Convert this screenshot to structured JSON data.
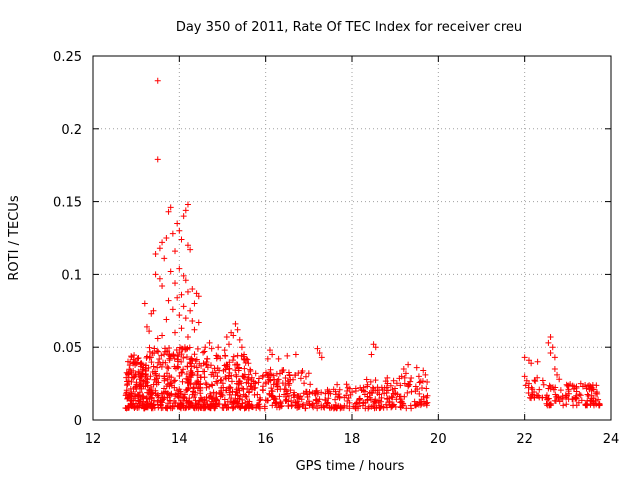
{
  "chart_data": {
    "type": "scatter",
    "title": "Day 350 of 2011, Rate Of TEC Index for receiver creu",
    "xlabel": "GPS time / hours",
    "ylabel": "ROTI / TECUs",
    "xlim": [
      12,
      24
    ],
    "ylim": [
      0,
      0.25
    ],
    "xticks": [
      12,
      14,
      16,
      18,
      20,
      22,
      24
    ],
    "xtick_labels": [
      "12",
      "14",
      "16",
      "18",
      "20",
      "22",
      "24"
    ],
    "yticks": [
      0,
      0.05,
      0.1,
      0.15,
      0.2,
      0.25
    ],
    "ytick_labels": [
      "0",
      "0.05",
      "0.1",
      "0.15",
      "0.2",
      "0.25"
    ],
    "grid": true,
    "marker": "plus",
    "color": "#ff0000",
    "series": [
      {
        "name": "ROTI",
        "points": [
          [
            13.5,
            0.233
          ],
          [
            13.5,
            0.179
          ],
          [
            13.8,
            0.146
          ],
          [
            13.75,
            0.143
          ],
          [
            14.2,
            0.148
          ],
          [
            14.15,
            0.144
          ],
          [
            14.1,
            0.14
          ],
          [
            13.95,
            0.135
          ],
          [
            14.0,
            0.13
          ],
          [
            13.85,
            0.128
          ],
          [
            13.7,
            0.125
          ],
          [
            13.6,
            0.122
          ],
          [
            13.55,
            0.118
          ],
          [
            14.05,
            0.124
          ],
          [
            14.2,
            0.12
          ],
          [
            13.9,
            0.116
          ],
          [
            13.45,
            0.114
          ],
          [
            13.65,
            0.111
          ],
          [
            14.25,
            0.117
          ],
          [
            14.0,
            0.104
          ],
          [
            13.8,
            0.102
          ],
          [
            14.1,
            0.099
          ],
          [
            13.45,
            0.1
          ],
          [
            13.55,
            0.097
          ],
          [
            14.15,
            0.096
          ],
          [
            13.9,
            0.094
          ],
          [
            13.6,
            0.092
          ],
          [
            14.3,
            0.09
          ],
          [
            14.2,
            0.088
          ],
          [
            14.05,
            0.086
          ],
          [
            13.95,
            0.084
          ],
          [
            14.4,
            0.087
          ],
          [
            14.45,
            0.085
          ],
          [
            13.75,
            0.082
          ],
          [
            14.35,
            0.08
          ],
          [
            14.1,
            0.078
          ],
          [
            13.85,
            0.076
          ],
          [
            14.25,
            0.075
          ],
          [
            13.4,
            0.075
          ],
          [
            13.35,
            0.073
          ],
          [
            13.2,
            0.08
          ],
          [
            14.0,
            0.072
          ],
          [
            14.15,
            0.07
          ],
          [
            13.7,
            0.069
          ],
          [
            14.3,
            0.068
          ],
          [
            14.45,
            0.067
          ],
          [
            13.25,
            0.064
          ],
          [
            13.3,
            0.061
          ],
          [
            14.05,
            0.063
          ],
          [
            13.9,
            0.06
          ],
          [
            13.6,
            0.058
          ],
          [
            14.35,
            0.062
          ],
          [
            14.2,
            0.057
          ],
          [
            13.5,
            0.056
          ],
          [
            15.3,
            0.066
          ],
          [
            15.35,
            0.062
          ],
          [
            15.2,
            0.06
          ],
          [
            15.25,
            0.058
          ],
          [
            15.4,
            0.055
          ],
          [
            15.1,
            0.057
          ],
          [
            15.15,
            0.052
          ],
          [
            14.9,
            0.05
          ],
          [
            15.45,
            0.05
          ],
          [
            15.05,
            0.048
          ],
          [
            14.7,
            0.053
          ],
          [
            14.75,
            0.049
          ],
          [
            14.6,
            0.05
          ],
          [
            15.5,
            0.045
          ],
          [
            15.55,
            0.042
          ],
          [
            15.6,
            0.039
          ],
          [
            18.5,
            0.052
          ],
          [
            18.55,
            0.05
          ],
          [
            18.45,
            0.045
          ],
          [
            17.2,
            0.049
          ],
          [
            17.25,
            0.046
          ],
          [
            17.3,
            0.043
          ],
          [
            16.1,
            0.048
          ],
          [
            16.15,
            0.045
          ],
          [
            16.05,
            0.042
          ],
          [
            16.7,
            0.045
          ],
          [
            16.5,
            0.044
          ],
          [
            16.3,
            0.042
          ],
          [
            19.2,
            0.035
          ],
          [
            19.25,
            0.032
          ],
          [
            19.3,
            0.038
          ],
          [
            19.5,
            0.036
          ],
          [
            19.55,
            0.03
          ],
          [
            19.65,
            0.034
          ],
          [
            19.7,
            0.031
          ],
          [
            19.15,
            0.03
          ],
          [
            22.6,
            0.057
          ],
          [
            22.55,
            0.053
          ],
          [
            22.65,
            0.05
          ],
          [
            22.6,
            0.046
          ],
          [
            22.7,
            0.043
          ],
          [
            22.0,
            0.043
          ],
          [
            22.1,
            0.041
          ],
          [
            22.15,
            0.039
          ],
          [
            22.3,
            0.04
          ],
          [
            22.0,
            0.03
          ],
          [
            22.05,
            0.027
          ],
          [
            22.1,
            0.025
          ],
          [
            22.7,
            0.035
          ],
          [
            22.75,
            0.031
          ],
          [
            22.8,
            0.028
          ],
          [
            23.2,
            0.022
          ],
          [
            23.3,
            0.025
          ],
          [
            23.35,
            0.023
          ],
          [
            23.4,
            0.024
          ],
          [
            23.5,
            0.021
          ],
          [
            23.55,
            0.02
          ],
          [
            23.65,
            0.018
          ],
          [
            23.6,
            0.015
          ],
          [
            23.7,
            0.014
          ]
        ],
        "clusters": [
          {
            "x": [
              12.75,
              13.3
            ],
            "y": [
              0.008,
              0.045
            ],
            "count": 170
          },
          {
            "x": [
              13.3,
              14.6
            ],
            "y": [
              0.008,
              0.05
            ],
            "count": 320
          },
          {
            "x": [
              14.6,
              15.6
            ],
            "y": [
              0.008,
              0.045
            ],
            "count": 200
          },
          {
            "x": [
              15.6,
              17.0
            ],
            "y": [
              0.008,
              0.035
            ],
            "count": 170
          },
          {
            "x": [
              17.0,
              18.3
            ],
            "y": [
              0.008,
              0.025
            ],
            "count": 110
          },
          {
            "x": [
              18.3,
              19.4
            ],
            "y": [
              0.008,
              0.03
            ],
            "count": 110
          },
          {
            "x": [
              19.4,
              19.75
            ],
            "y": [
              0.01,
              0.028
            ],
            "count": 30
          },
          {
            "x": [
              22.0,
              22.5
            ],
            "y": [
              0.015,
              0.03
            ],
            "count": 25
          },
          {
            "x": [
              22.5,
              23.1
            ],
            "y": [
              0.01,
              0.025
            ],
            "count": 45
          },
          {
            "x": [
              23.1,
              23.75
            ],
            "y": [
              0.01,
              0.025
            ],
            "count": 55
          }
        ]
      }
    ]
  }
}
